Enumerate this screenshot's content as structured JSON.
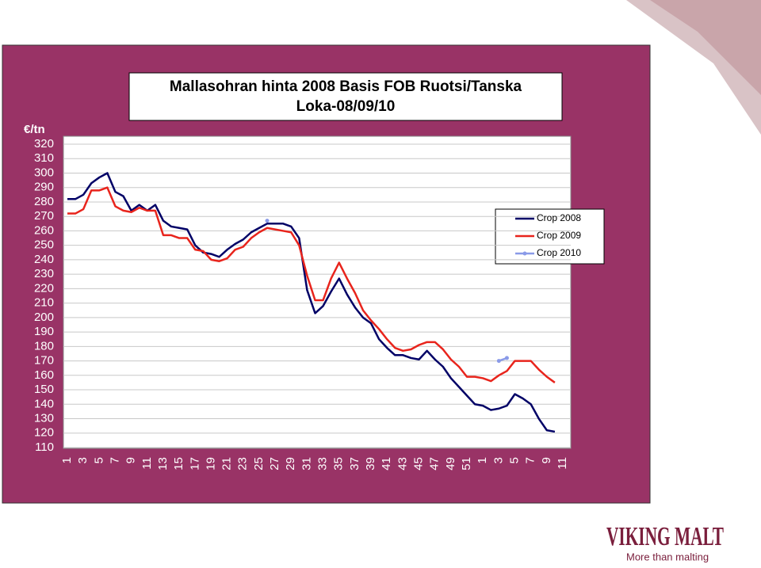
{
  "chart_data": {
    "type": "line",
    "title": "Mallasohran hinta 2008 Basis FOB Ruotsi/Tanska",
    "subtitle": "Loka-08/09/10",
    "y_label": "€/tn",
    "categories": [
      "1",
      null,
      "3",
      null,
      "5",
      null,
      "7",
      null,
      "9",
      null,
      "11",
      null,
      "13",
      null,
      "15",
      null,
      "17",
      null,
      "19",
      null,
      "21",
      null,
      "23",
      null,
      "25",
      null,
      "27",
      null,
      "29",
      null,
      "31",
      null,
      "33",
      null,
      "35",
      null,
      "37",
      null,
      "39",
      null,
      "41",
      null,
      "43",
      null,
      "45",
      null,
      "47",
      null,
      "49",
      null,
      "51",
      null,
      "1",
      null,
      "3",
      null,
      "5",
      null,
      "7",
      null,
      "9",
      null,
      "11"
    ],
    "series": [
      {
        "name": "Crop 2008",
        "color": "#000066",
        "values": [
          282,
          282,
          285,
          293,
          297,
          300,
          287,
          284,
          274,
          278,
          274,
          278,
          267,
          263,
          262,
          261,
          250,
          245,
          244,
          242,
          247,
          251,
          254,
          259,
          262,
          265,
          265,
          265,
          263,
          255,
          219,
          203,
          208,
          218,
          227,
          216,
          207,
          200,
          196,
          185,
          179,
          174,
          174,
          172,
          171,
          177,
          171,
          166,
          158,
          152,
          146,
          140,
          139,
          136,
          137,
          139,
          147,
          144,
          140,
          130,
          122,
          121,
          null
        ]
      },
      {
        "name": "Crop 2009",
        "color": "#e8241c",
        "values": [
          272,
          272,
          275,
          288,
          288,
          290,
          277,
          274,
          273,
          276,
          274,
          274,
          257,
          257,
          255,
          255,
          247,
          246,
          240,
          239,
          241,
          247,
          249,
          255,
          259,
          262,
          261,
          260,
          259,
          250,
          229,
          212,
          212,
          227,
          238,
          227,
          217,
          205,
          198,
          192,
          185,
          179,
          177,
          178,
          181,
          183,
          183,
          178,
          171,
          166,
          159,
          159,
          158,
          156,
          160,
          163,
          170,
          170,
          170,
          164,
          159,
          155,
          null
        ]
      },
      {
        "name": "Crop 2010",
        "color": "#8a9ae8",
        "values": [
          null,
          null,
          null,
          null,
          null,
          null,
          null,
          null,
          null,
          null,
          null,
          null,
          null,
          null,
          null,
          null,
          null,
          null,
          null,
          null,
          null,
          null,
          null,
          null,
          null,
          267,
          null,
          null,
          null,
          null,
          null,
          null,
          null,
          null,
          null,
          null,
          null,
          null,
          null,
          null,
          null,
          null,
          null,
          null,
          null,
          null,
          null,
          null,
          null,
          null,
          null,
          null,
          null,
          null,
          170,
          172,
          null,
          null,
          null,
          null,
          null,
          null,
          null
        ]
      }
    ],
    "ylim": [
      110,
      320
    ],
    "yticks": [
      110,
      120,
      130,
      140,
      150,
      160,
      170,
      180,
      190,
      200,
      210,
      220,
      230,
      240,
      250,
      260,
      270,
      280,
      290,
      300,
      310,
      320
    ],
    "grid": true
  },
  "logo": {
    "name": "VIKING MALT",
    "tagline": "More than malting"
  }
}
